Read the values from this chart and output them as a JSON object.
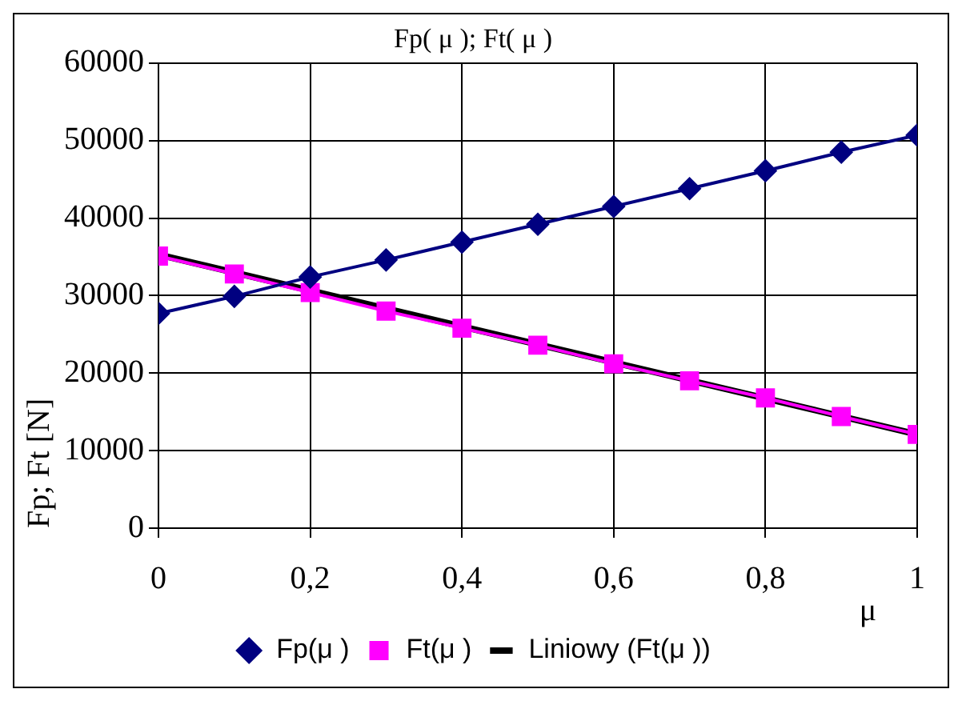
{
  "chart_data": {
    "type": "line",
    "title": "Fp( μ ); Ft( μ )",
    "xlabel": "μ",
    "ylabel": "Fp; Ft [N]",
    "x": [
      0,
      0.1,
      0.2,
      0.3,
      0.4,
      0.5,
      0.6,
      0.7,
      0.8,
      0.9,
      1
    ],
    "series": [
      {
        "name": "Fp(μ )",
        "color": "#000080",
        "marker": "diamond",
        "values": [
          27700,
          29900,
          32400,
          34600,
          36900,
          39200,
          41500,
          43800,
          46100,
          48500,
          50700
        ]
      },
      {
        "name": "Ft(μ )",
        "color": "#ff00ff",
        "marker": "square",
        "values": [
          35100,
          32800,
          30400,
          28000,
          25800,
          23600,
          21200,
          19000,
          16800,
          14400,
          12100
        ]
      },
      {
        "name": "Liniowy (Ft(μ ))",
        "color": "#000000",
        "marker": "none",
        "x": [
          0,
          1
        ],
        "values": [
          35300,
          12100
        ]
      }
    ],
    "xlim": [
      0,
      1
    ],
    "xticks": [
      0,
      {
        "value": 0.2,
        "label": "0,2"
      },
      {
        "value": 0.4,
        "label": "0,4"
      },
      {
        "value": 0.6,
        "label": "0,6"
      },
      {
        "value": 0.8,
        "label": "0,8"
      },
      1
    ],
    "ylim": [
      0,
      60000
    ],
    "yticks": [
      0,
      10000,
      20000,
      30000,
      40000,
      50000,
      60000
    ],
    "grid": true,
    "legend": "bottom"
  }
}
